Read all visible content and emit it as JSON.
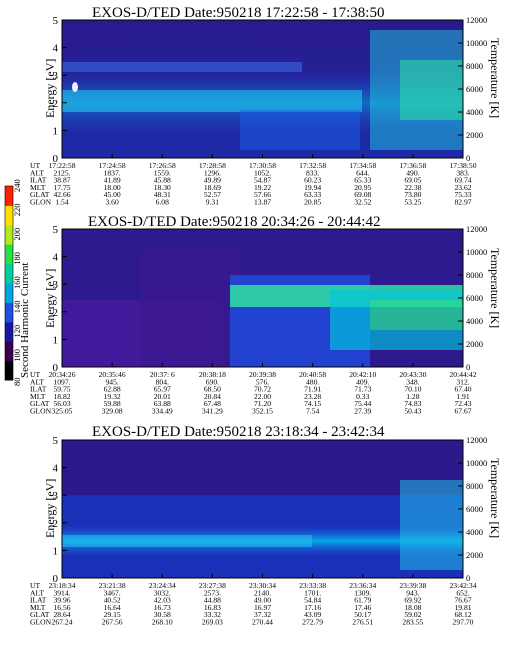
{
  "chart_data": [
    {
      "type": "heatmap",
      "title": "EXOS-D/TED   Date:950218  17:22:58 - 17:38:50",
      "ylabel": "Energy [eV]",
      "y2label": "Temperature [K]",
      "ylim": [
        0,
        5
      ],
      "y2lim": [
        0,
        12000
      ],
      "yticks": [
        "0",
        "1",
        "2",
        "3",
        "4",
        "5"
      ],
      "y2ticks": [
        "0",
        "2000",
        "4000",
        "6000",
        "8000",
        "10000",
        "12000"
      ],
      "table_headers": [
        "UT",
        "ALT",
        "ILAT",
        "MLT",
        "GLAT",
        "GLON"
      ],
      "table_columns": [
        [
          "17:22:58",
          "2125.",
          "38.87",
          "17.75",
          "42.66",
          "1.54"
        ],
        [
          "17:24:58",
          "1837.",
          "41.89",
          "18.00",
          "45.00",
          "3.60"
        ],
        [
          "17:26:58",
          "1559.",
          "45.88",
          "18.30",
          "48.31",
          "6.08"
        ],
        [
          "17:28:58",
          "1296.",
          "49.89",
          "18.69",
          "52.57",
          "9.31"
        ],
        [
          "17:30:58",
          "1052.",
          "54.87",
          "19.22",
          "57.66",
          "13.87"
        ],
        [
          "17:32:58",
          "833.",
          "60.23",
          "19.94",
          "63.33",
          "20.85"
        ],
        [
          "17:34:58",
          "644.",
          "65.33",
          "20.95",
          "69.08",
          "32.52"
        ],
        [
          "17:36:58",
          "490.",
          "69.05",
          "22.38",
          "73.80",
          "53.25"
        ],
        [
          "17:38:50",
          "383.",
          "69.74",
          "23.62",
          "75.33",
          "82.97"
        ]
      ]
    },
    {
      "type": "heatmap",
      "title": "EXOS-D/TED   Date:950218  20:34:26 - 20:44:42",
      "ylabel": "Energy [eV]",
      "y2label": "Temperature [K]",
      "ylim": [
        0,
        5
      ],
      "y2lim": [
        0,
        12000
      ],
      "yticks": [
        "0",
        "1",
        "2",
        "3",
        "4",
        "5"
      ],
      "y2ticks": [
        "0",
        "2000",
        "4000",
        "6000",
        "8000",
        "10000",
        "12000"
      ],
      "table_headers": [
        "UT",
        "ALT",
        "ILAT",
        "MLT",
        "GLAT",
        "GLON"
      ],
      "table_columns": [
        [
          "20:34:26",
          "1097.",
          "59.75",
          "18.82",
          "56.03",
          "325.05"
        ],
        [
          "20:35:46",
          "945.",
          "62.88",
          "19.32",
          "59.88",
          "329.08"
        ],
        [
          "20:37: 6",
          "804.",
          "65.97",
          "20.01",
          "63.88",
          "334.49"
        ],
        [
          "20:38:18",
          "690.",
          "68.50",
          "20.84",
          "67.48",
          "341.29"
        ],
        [
          "20:39:38",
          "576.",
          "70.72",
          "22.00",
          "71.20",
          "352.15"
        ],
        [
          "20:40:58",
          "480.",
          "71.91",
          "23.28",
          "74.15",
          "7.54"
        ],
        [
          "20:42:10",
          "409.",
          "71.73",
          "0.33",
          "75.44",
          "27.39"
        ],
        [
          "20:43:30",
          "348.",
          "70.10",
          "1.28",
          "74.83",
          "50.43"
        ],
        [
          "20:44:42",
          "312.",
          "67.40",
          "1.91",
          "72.43",
          "67.67"
        ]
      ]
    },
    {
      "type": "heatmap",
      "title": "EXOS-D/TED   Date:950218  23:18:34 - 23:42:34",
      "ylabel": "Energy [eV]",
      "y2label": "Temperature [K]",
      "ylim": [
        0,
        5
      ],
      "y2lim": [
        0,
        12000
      ],
      "yticks": [
        "0",
        "1",
        "2",
        "3",
        "4",
        "5"
      ],
      "y2ticks": [
        "0",
        "2000",
        "4000",
        "6000",
        "8000",
        "10000",
        "12000"
      ],
      "table_headers": [
        "UT",
        "ALT",
        "ILAT",
        "MLT",
        "GLAT",
        "GLON"
      ],
      "table_columns": [
        [
          "23:18:34",
          "3914.",
          "39.96",
          "16.56",
          "28.64",
          "267.24"
        ],
        [
          "23:21:38",
          "3467.",
          "40.52",
          "16.64",
          "29.15",
          "267.56"
        ],
        [
          "23:24:34",
          "3032.",
          "42.03",
          "16.73",
          "30.58",
          "268.10"
        ],
        [
          "23:27:38",
          "2573.",
          "44.88",
          "16.83",
          "33.32",
          "269.03"
        ],
        [
          "23:30:34",
          "2140.",
          "49.00",
          "16.97",
          "37.32",
          "270.44"
        ],
        [
          "23:33:38",
          "1701.",
          "54.84",
          "17.16",
          "43.09",
          "272.79"
        ],
        [
          "23:36:34",
          "1309.",
          "61.79",
          "17.46",
          "50.17",
          "276.51"
        ],
        [
          "23:39:38",
          "943.",
          "69.92",
          "18.08",
          "59.02",
          "283.55"
        ],
        [
          "23:42:34",
          "652.",
          "76.67",
          "19.81",
          "68.12",
          "297.70"
        ]
      ]
    }
  ],
  "colorbar": {
    "label": "Second Harmonic Current",
    "ticks": [
      "80",
      "100",
      "120",
      "140",
      "160",
      "180",
      "200",
      "220",
      "240"
    ],
    "colors": [
      "#000000",
      "#3a004f",
      "#1818a0",
      "#1e50e6",
      "#00a8e0",
      "#00d0a0",
      "#28e048",
      "#b0ec18",
      "#ffe000",
      "#ff2000"
    ]
  }
}
